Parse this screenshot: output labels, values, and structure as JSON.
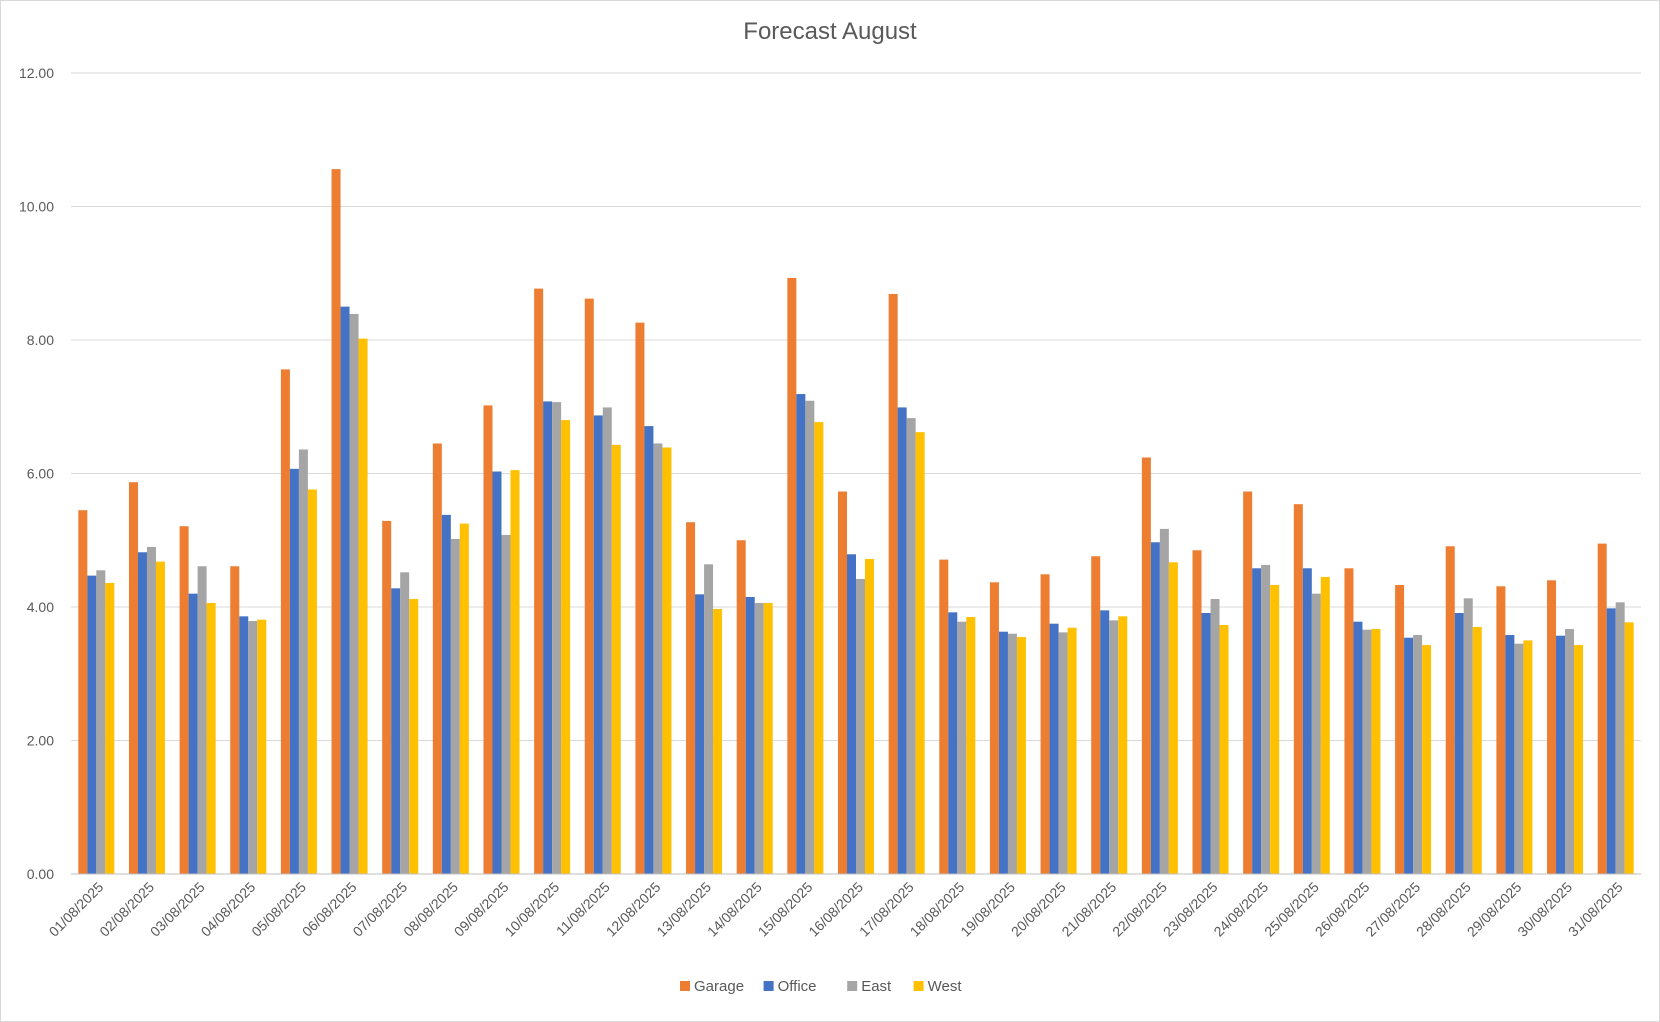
{
  "chart_data": {
    "type": "bar",
    "title": "Forecast August",
    "xlabel": "",
    "ylabel": "",
    "ylim": [
      0,
      12
    ],
    "yticks": [
      "0.00",
      "2.00",
      "4.00",
      "6.00",
      "8.00",
      "10.00",
      "12.00"
    ],
    "ytick_values": [
      0,
      2,
      4,
      6,
      8,
      10,
      12
    ],
    "grid": true,
    "legend_position": "bottom",
    "categories": [
      "01/08/2025",
      "02/08/2025",
      "03/08/2025",
      "04/08/2025",
      "05/08/2025",
      "06/08/2025",
      "07/08/2025",
      "08/08/2025",
      "09/08/2025",
      "10/08/2025",
      "11/08/2025",
      "12/08/2025",
      "13/08/2025",
      "14/08/2025",
      "15/08/2025",
      "16/08/2025",
      "17/08/2025",
      "18/08/2025",
      "19/08/2025",
      "20/08/2025",
      "21/08/2025",
      "22/08/2025",
      "23/08/2025",
      "24/08/2025",
      "25/08/2025",
      "26/08/2025",
      "27/08/2025",
      "28/08/2025",
      "29/08/2025",
      "30/08/2025",
      "31/08/2025"
    ],
    "series": [
      {
        "name": "Garage",
        "color": "#ED7D31",
        "values": [
          5.45,
          5.87,
          5.21,
          4.61,
          7.56,
          10.56,
          5.29,
          6.45,
          7.02,
          8.77,
          8.62,
          8.26,
          5.27,
          5.0,
          8.93,
          5.73,
          8.69,
          4.71,
          4.37,
          4.49,
          4.76,
          6.24,
          4.85,
          5.73,
          5.54,
          4.58,
          4.33,
          4.91,
          4.31,
          4.4,
          4.95
        ]
      },
      {
        "name": "Office",
        "color": "#4472C4",
        "values": [
          4.47,
          4.82,
          4.2,
          3.86,
          6.07,
          8.5,
          4.28,
          5.38,
          6.03,
          7.08,
          6.87,
          6.71,
          4.19,
          4.15,
          7.19,
          4.79,
          6.99,
          3.92,
          3.63,
          3.75,
          3.95,
          4.97,
          3.91,
          4.58,
          4.58,
          3.78,
          3.54,
          3.91,
          3.58,
          3.57,
          3.98
        ]
      },
      {
        "name": "East",
        "color": "#A5A5A5",
        "values": [
          4.55,
          4.9,
          4.61,
          3.79,
          6.36,
          8.39,
          4.52,
          5.02,
          5.08,
          7.07,
          6.99,
          6.45,
          4.64,
          4.06,
          7.09,
          4.42,
          6.83,
          3.78,
          3.6,
          3.62,
          3.8,
          5.17,
          4.12,
          4.63,
          4.2,
          3.66,
          3.58,
          4.13,
          3.45,
          3.67,
          4.07
        ]
      },
      {
        "name": "West",
        "color": "#FFC000",
        "values": [
          4.36,
          4.68,
          4.06,
          3.81,
          5.76,
          8.02,
          4.12,
          5.25,
          6.05,
          6.8,
          6.43,
          6.39,
          3.97,
          4.06,
          6.77,
          4.72,
          6.62,
          3.85,
          3.55,
          3.69,
          3.86,
          4.67,
          3.73,
          4.33,
          4.45,
          3.67,
          3.43,
          3.7,
          3.5,
          3.43,
          3.77
        ]
      }
    ]
  }
}
